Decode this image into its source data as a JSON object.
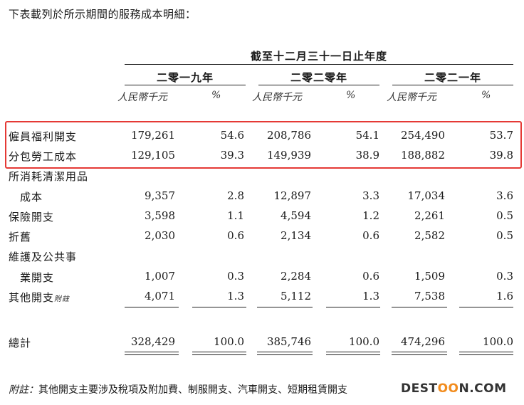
{
  "intro": "下表載列於所示期間的服務成本明細：",
  "period_header": "截至十二月三十一日止年度",
  "years": [
    "二零一九年",
    "二零二零年",
    "二零二一年"
  ],
  "unit_amount": "人民幣千元",
  "unit_pct": "%",
  "rows": [
    {
      "label": "僱員福利開支",
      "v": [
        "179,261",
        "54.6",
        "208,786",
        "54.1",
        "254,490",
        "53.7"
      ]
    },
    {
      "label": "分包勞工成本",
      "v": [
        "129,105",
        "39.3",
        "149,939",
        "38.9",
        "188,882",
        "39.8"
      ]
    },
    {
      "label": "所消耗清潔用品",
      "label2": "成本",
      "v": [
        "9,357",
        "2.8",
        "12,897",
        "3.3",
        "17,034",
        "3.6"
      ]
    },
    {
      "label": "保險開支",
      "v": [
        "3,598",
        "1.1",
        "4,594",
        "1.2",
        "2,261",
        "0.5"
      ]
    },
    {
      "label": "折舊",
      "v": [
        "2,030",
        "0.6",
        "2,134",
        "0.6",
        "2,582",
        "0.5"
      ]
    },
    {
      "label": "維護及公共事",
      "label2": "業開支",
      "v": [
        "1,007",
        "0.3",
        "2,284",
        "0.6",
        "1,509",
        "0.3"
      ]
    },
    {
      "label": "其他開支",
      "sup": "附註",
      "v": [
        "4,071",
        "1.3",
        "5,112",
        "1.3",
        "7,538",
        "1.6"
      ]
    }
  ],
  "total": {
    "label": "總計",
    "v": [
      "328,429",
      "100.0",
      "385,746",
      "100.0",
      "474,296",
      "100.0"
    ]
  },
  "note_label": "附註：",
  "note_text": "其他開支主要涉及稅項及附加費、制服開支、汽車開支、短期租賃開支",
  "watermark": {
    "pre": "DEST",
    "o1": "O",
    "o2": "O",
    "post": "N.COM"
  }
}
